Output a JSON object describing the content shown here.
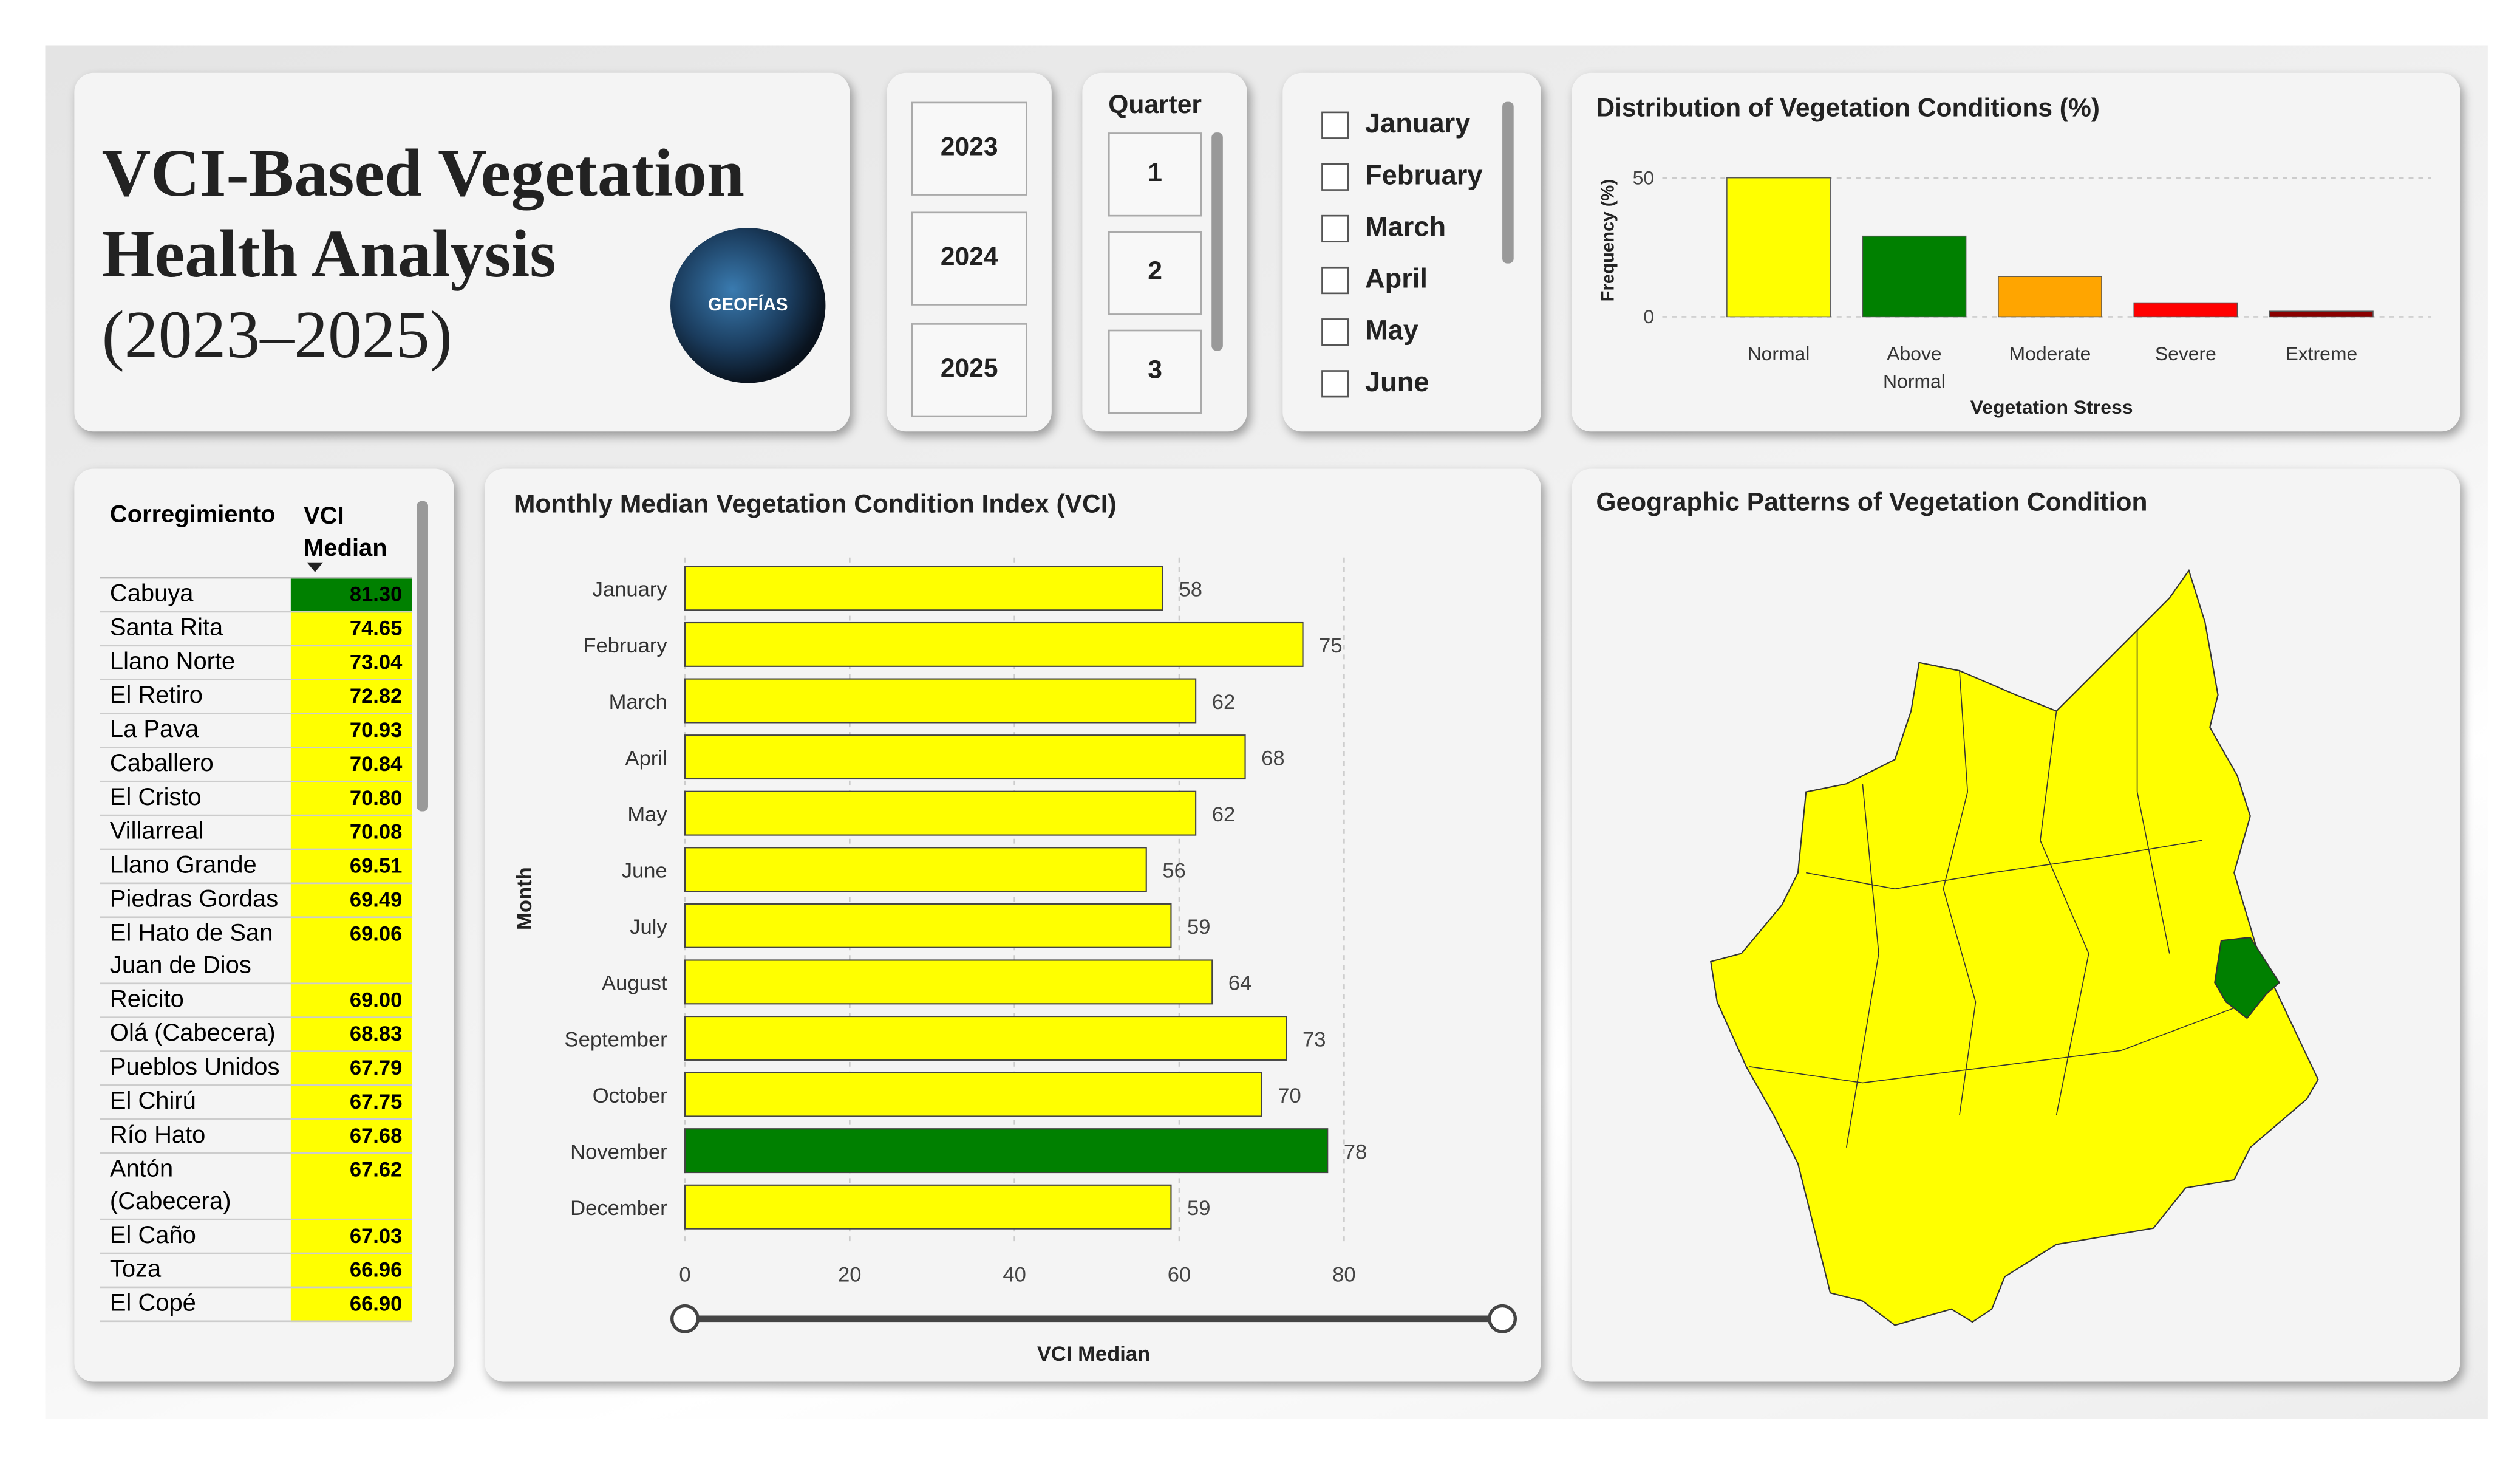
{
  "header": {
    "title_lines": [
      "VCI-Based Vegetation",
      "Health Analysis",
      "(2023–2025)"
    ],
    "logo_text": "GEOFÍAS"
  },
  "year_slicer": {
    "options": [
      "2023",
      "2024",
      "2025"
    ]
  },
  "quarter_slicer": {
    "title": "Quarter",
    "options": [
      "1",
      "2",
      "3"
    ]
  },
  "month_slicer": {
    "options": [
      "January",
      "February",
      "March",
      "April",
      "May",
      "June"
    ]
  },
  "table": {
    "headers": [
      "Corregimiento",
      "VCI Median"
    ],
    "rows": [
      {
        "name": "Cabuya",
        "value": "81.30",
        "color": "#008000"
      },
      {
        "name": "Santa Rita",
        "value": "74.65",
        "color": "#ffff00"
      },
      {
        "name": "Llano Norte",
        "value": "73.04",
        "color": "#ffff00"
      },
      {
        "name": "El Retiro",
        "value": "72.82",
        "color": "#ffff00"
      },
      {
        "name": "La Pava",
        "value": "70.93",
        "color": "#ffff00"
      },
      {
        "name": "Caballero",
        "value": "70.84",
        "color": "#ffff00"
      },
      {
        "name": "El Cristo",
        "value": "70.80",
        "color": "#ffff00"
      },
      {
        "name": "Villarreal",
        "value": "70.08",
        "color": "#ffff00"
      },
      {
        "name": "Llano Grande",
        "value": "69.51",
        "color": "#ffff00"
      },
      {
        "name": "Piedras Gordas",
        "value": "69.49",
        "color": "#ffff00"
      },
      {
        "name": "El Hato de San Juan de Dios",
        "value": "69.06",
        "color": "#ffff00"
      },
      {
        "name": "Reicito",
        "value": "69.00",
        "color": "#ffff00"
      },
      {
        "name": "Olá (Cabecera)",
        "value": "68.83",
        "color": "#ffff00"
      },
      {
        "name": "Pueblos Unidos",
        "value": "67.79",
        "color": "#ffff00"
      },
      {
        "name": "El Chirú",
        "value": "67.75",
        "color": "#ffff00"
      },
      {
        "name": "Río Hato",
        "value": "67.68",
        "color": "#ffff00"
      },
      {
        "name": "Antón (Cabecera)",
        "value": "67.62",
        "color": "#ffff00"
      },
      {
        "name": "El Caño",
        "value": "67.03",
        "color": "#ffff00"
      },
      {
        "name": "Toza",
        "value": "66.96",
        "color": "#ffff00"
      },
      {
        "name": "El Copé",
        "value": "66.90",
        "color": "#ffff00"
      }
    ]
  },
  "map": {
    "title": "Geographic Patterns of Vegetation Condition"
  },
  "chart_data": [
    {
      "type": "bar",
      "title": "Distribution of Vegetation Conditions (%)",
      "x_label": "Vegetation Stress",
      "y_label": "Frequency (%)",
      "categories": [
        "Normal",
        "Above Normal",
        "Moderate",
        "Severe",
        "Extreme"
      ],
      "values": [
        50,
        29,
        14.5,
        5,
        2
      ],
      "colors": [
        "#ffff00",
        "#008000",
        "#ffa500",
        "#ff0000",
        "#8b0000"
      ],
      "ylim": [
        0,
        55
      ],
      "yticks": [
        0,
        50
      ],
      "grid": true
    },
    {
      "type": "hbar",
      "title": "Monthly Median Vegetation Condition Index (VCI)",
      "x_label": "VCI Median",
      "y_label": "Month",
      "categories": [
        "January",
        "February",
        "March",
        "April",
        "May",
        "June",
        "July",
        "August",
        "September",
        "October",
        "November",
        "December"
      ],
      "values": [
        58,
        75,
        62,
        68,
        62,
        56,
        59,
        64,
        73,
        70,
        78,
        59
      ],
      "colors": [
        "#ffff00",
        "#ffff00",
        "#ffff00",
        "#ffff00",
        "#ffff00",
        "#ffff00",
        "#ffff00",
        "#ffff00",
        "#ffff00",
        "#ffff00",
        "#008000",
        "#ffff00"
      ],
      "xlim": [
        0,
        80
      ],
      "xticks": [
        0,
        20,
        40,
        60,
        80
      ],
      "grid": true
    }
  ]
}
